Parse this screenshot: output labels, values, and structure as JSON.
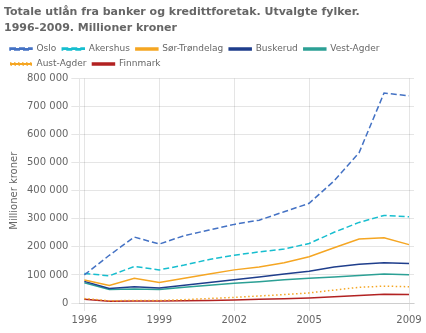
{
  "chart_data": {
    "type": "line",
    "title": "Totale utlån fra banker og kredittforetak. Utvalgte fylker.",
    "subtitle": "1996-2009. Millioner kroner",
    "y_label": "Millioner kroner",
    "x": [
      1996,
      1997,
      1998,
      1999,
      2000,
      2001,
      2002,
      2003,
      2004,
      2005,
      2006,
      2007,
      2008,
      2009
    ],
    "series": [
      {
        "name": "Oslo",
        "color": "#4472C4",
        "line_style": "dashed",
        "values": [
          100000,
          170000,
          235000,
          210000,
          240000,
          260000,
          280000,
          295000,
          325000,
          355000,
          435000,
          535000,
          748000,
          738000
        ]
      },
      {
        "name": "Akershus",
        "color": "#17BECF",
        "line_style": "dashed",
        "values": [
          105000,
          97000,
          130000,
          118000,
          135000,
          155000,
          170000,
          182000,
          192000,
          212000,
          252000,
          287000,
          312000,
          307000
        ]
      },
      {
        "name": "Sør-Trøndelag",
        "color": "#F5A623",
        "line_style": "solid",
        "values": [
          82000,
          62000,
          88000,
          73000,
          88000,
          103000,
          118000,
          128000,
          143000,
          165000,
          197000,
          228000,
          232000,
          208000
        ]
      },
      {
        "name": "Buskerud",
        "color": "#1F3E8C",
        "line_style": "solid",
        "values": [
          77000,
          52000,
          58000,
          53000,
          63000,
          73000,
          83000,
          93000,
          103000,
          113000,
          128000,
          138000,
          143000,
          141000
        ]
      },
      {
        "name": "Vest-Agder",
        "color": "#2CA095",
        "line_style": "solid",
        "values": [
          72000,
          48000,
          50000,
          48000,
          56000,
          63000,
          70000,
          76000,
          83000,
          88000,
          93000,
          98000,
          103000,
          101000
        ]
      },
      {
        "name": "Aust-Agder",
        "color": "#F5A623",
        "line_style": "dotted",
        "values": [
          16000,
          8000,
          9000,
          9000,
          12000,
          16000,
          20000,
          25000,
          30000,
          36000,
          46000,
          56000,
          60000,
          58000
        ]
      },
      {
        "name": "Finnmark",
        "color": "#B22222",
        "line_style": "solid",
        "values": [
          13000,
          6000,
          7000,
          7000,
          8000,
          9000,
          11000,
          13000,
          15000,
          18000,
          22000,
          27000,
          31000,
          30000
        ]
      }
    ],
    "xlim": [
      1995.8,
      2009.2
    ],
    "xticks": [
      1996,
      1999,
      2002,
      2005,
      2009
    ],
    "ylim": [
      0,
      800000
    ],
    "yticks": [
      0,
      {
        "value": 100000,
        "label": "100 000"
      },
      {
        "value": 200000,
        "label": "200 000"
      },
      {
        "value": 300000,
        "label": "300 000"
      },
      {
        "value": 400000,
        "label": "400 000"
      },
      {
        "value": 500000,
        "label": "500 000"
      },
      {
        "value": 600000,
        "label": "600 000"
      },
      {
        "value": 700000,
        "label": "700 000"
      },
      {
        "value": 800000,
        "label": "800 000"
      }
    ],
    "grid": true,
    "legend": "upper left"
  }
}
